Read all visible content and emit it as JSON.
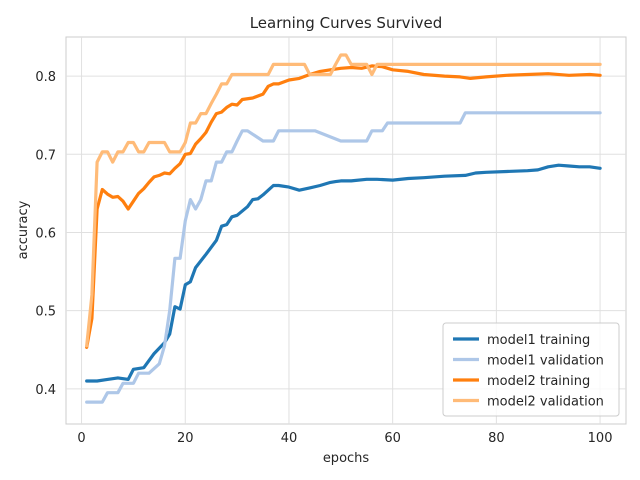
{
  "chart_data": {
    "type": "line",
    "title": "Learning Curves Survived",
    "xlabel": "epochs",
    "ylabel": "accuracy",
    "xlim": [
      -3,
      105
    ],
    "ylim": [
      0.355,
      0.85
    ],
    "xticks": [
      0,
      20,
      40,
      60,
      80,
      100
    ],
    "yticks": [
      0.4,
      0.5,
      0.6,
      0.7,
      0.8
    ],
    "ytick_labels": [
      "0.4",
      "0.5",
      "0.6",
      "0.7",
      "0.8"
    ],
    "grid": true,
    "legend_position": "lower-right",
    "series": [
      {
        "name": "model1 training",
        "color": "#1f77b4",
        "x": [
          1,
          3,
          5,
          7,
          9,
          10,
          12,
          14,
          16,
          17,
          18,
          19,
          20,
          21,
          22,
          24,
          26,
          27,
          28,
          29,
          30,
          32,
          33,
          34,
          35,
          37,
          38,
          40,
          42,
          44,
          46,
          48,
          49,
          50,
          52,
          55,
          57,
          60,
          63,
          66,
          70,
          74,
          76,
          78,
          82,
          86,
          88,
          90,
          92,
          94,
          96,
          98,
          100
        ],
        "y": [
          0.41,
          0.41,
          0.412,
          0.414,
          0.412,
          0.425,
          0.427,
          0.445,
          0.459,
          0.47,
          0.505,
          0.502,
          0.533,
          0.537,
          0.555,
          0.572,
          0.59,
          0.608,
          0.61,
          0.62,
          0.622,
          0.633,
          0.642,
          0.643,
          0.648,
          0.66,
          0.66,
          0.658,
          0.654,
          0.657,
          0.66,
          0.664,
          0.665,
          0.666,
          0.666,
          0.668,
          0.668,
          0.667,
          0.669,
          0.67,
          0.672,
          0.673,
          0.676,
          0.677,
          0.678,
          0.679,
          0.68,
          0.684,
          0.686,
          0.685,
          0.684,
          0.684,
          0.682
        ]
      },
      {
        "name": "model1 validation",
        "color": "#aec7e8",
        "x": [
          1,
          4,
          5,
          7,
          8,
          10,
          11,
          13,
          15,
          16,
          17,
          18,
          19,
          20,
          21,
          22,
          23,
          24,
          25,
          26,
          27,
          28,
          29,
          30,
          31,
          32,
          35,
          37,
          38,
          44,
          45,
          50,
          51,
          55,
          56,
          58,
          59,
          73,
          74,
          100
        ],
        "y": [
          0.383,
          0.383,
          0.395,
          0.395,
          0.407,
          0.407,
          0.42,
          0.42,
          0.432,
          0.455,
          0.5,
          0.567,
          0.567,
          0.615,
          0.642,
          0.63,
          0.642,
          0.666,
          0.666,
          0.69,
          0.69,
          0.703,
          0.703,
          0.717,
          0.73,
          0.73,
          0.717,
          0.717,
          0.73,
          0.73,
          0.73,
          0.717,
          0.717,
          0.717,
          0.73,
          0.73,
          0.74,
          0.74,
          0.753,
          0.753
        ]
      },
      {
        "name": "model2 training",
        "color": "#ff7f0e",
        "x": [
          1,
          2,
          3,
          4,
          5,
          6,
          7,
          8,
          9,
          10,
          11,
          12,
          13,
          14,
          15,
          16,
          17,
          18,
          19,
          20,
          21,
          22,
          23,
          24,
          25,
          26,
          27,
          28,
          29,
          30,
          31,
          33,
          35,
          36,
          37,
          38,
          40,
          42,
          44,
          46,
          48,
          50,
          52,
          54,
          56,
          58,
          60,
          63,
          66,
          70,
          73,
          75,
          78,
          82,
          86,
          90,
          94,
          98,
          100
        ],
        "y": [
          0.453,
          0.49,
          0.63,
          0.655,
          0.649,
          0.645,
          0.646,
          0.64,
          0.63,
          0.64,
          0.65,
          0.656,
          0.664,
          0.671,
          0.673,
          0.676,
          0.675,
          0.682,
          0.688,
          0.7,
          0.701,
          0.713,
          0.72,
          0.728,
          0.741,
          0.752,
          0.754,
          0.76,
          0.764,
          0.763,
          0.77,
          0.772,
          0.777,
          0.787,
          0.79,
          0.79,
          0.795,
          0.797,
          0.802,
          0.806,
          0.808,
          0.81,
          0.811,
          0.81,
          0.813,
          0.812,
          0.808,
          0.806,
          0.802,
          0.8,
          0.799,
          0.797,
          0.799,
          0.801,
          0.802,
          0.803,
          0.801,
          0.802,
          0.801
        ]
      },
      {
        "name": "model2 validation",
        "color": "#ffbb78",
        "x": [
          1,
          2,
          3,
          4,
          5,
          6,
          7,
          8,
          9,
          10,
          11,
          12,
          13,
          14,
          15,
          16,
          17,
          18,
          19,
          20,
          21,
          22,
          23,
          24,
          25,
          26,
          27,
          28,
          29,
          30,
          31,
          35,
          36,
          37,
          38,
          42,
          43,
          44,
          48,
          49,
          50,
          51,
          52,
          53,
          55,
          56,
          57,
          58,
          60,
          100
        ],
        "y": [
          0.455,
          0.52,
          0.69,
          0.703,
          0.703,
          0.69,
          0.703,
          0.703,
          0.715,
          0.715,
          0.703,
          0.703,
          0.715,
          0.715,
          0.715,
          0.715,
          0.703,
          0.703,
          0.703,
          0.715,
          0.74,
          0.74,
          0.752,
          0.752,
          0.765,
          0.777,
          0.79,
          0.79,
          0.802,
          0.802,
          0.802,
          0.802,
          0.802,
          0.815,
          0.815,
          0.815,
          0.815,
          0.802,
          0.802,
          0.815,
          0.827,
          0.827,
          0.815,
          0.815,
          0.815,
          0.802,
          0.815,
          0.815,
          0.815,
          0.815
        ]
      }
    ]
  }
}
